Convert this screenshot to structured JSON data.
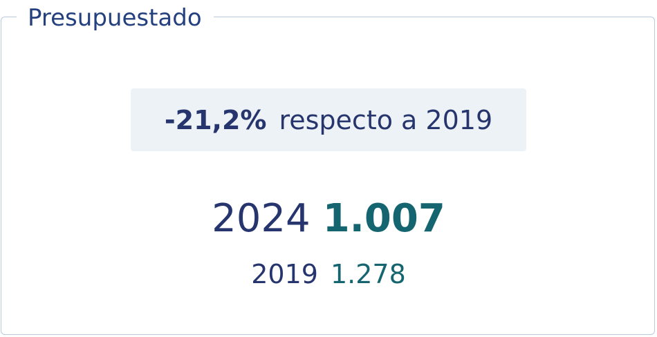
{
  "card": {
    "title": "Presupuestado"
  },
  "change": {
    "percent": "-21,2%",
    "text": "respecto a 2019"
  },
  "current": {
    "year": "2024",
    "value": "1.007"
  },
  "previous": {
    "year": "2019",
    "value": "1.278"
  },
  "colors": {
    "title": "#24407e",
    "dark_text": "#26356d",
    "teal_value": "#146570",
    "change_bg": "#ecf2f5",
    "border": "#b9c8dd"
  }
}
